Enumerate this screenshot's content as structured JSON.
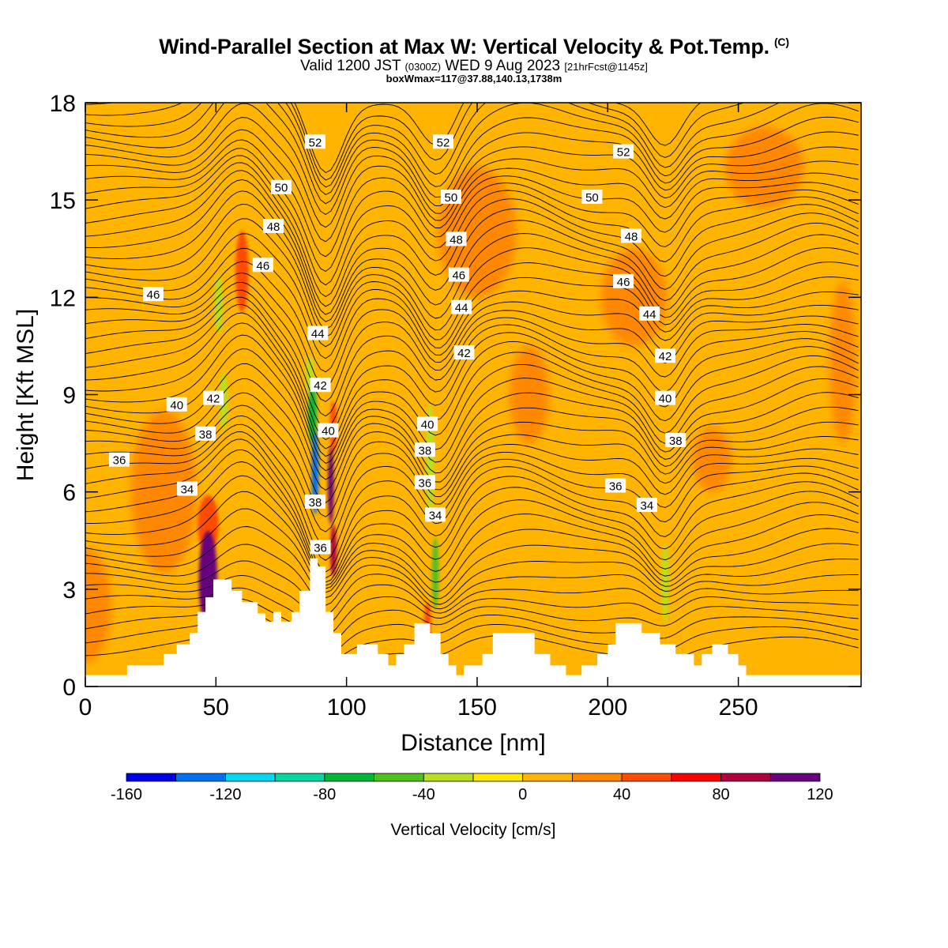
{
  "header": {
    "title": "Wind-Parallel Section at Max W: Vertical Velocity & Pot.Temp.",
    "copyright_mark": "(C)",
    "valid_prefix": "Valid 1200 JST",
    "valid_utc": "(0300Z)",
    "valid_date": "WED 9 Aug 2023",
    "forecast": "[21hrFcst@1145z]",
    "box_info": "boxWmax=117@37.88,140.13,1738m"
  },
  "chart_data": {
    "type": "heatmap",
    "xlabel": "Distance [nm]",
    "ylabel": "Height [Kft MSL]",
    "xlim": [
      0,
      297
    ],
    "ylim": [
      0,
      18
    ],
    "x_ticks": [
      0,
      50,
      100,
      150,
      200,
      250
    ],
    "x_tick_labels": [
      "0",
      "50",
      "100",
      "150",
      "200",
      "250"
    ],
    "y_ticks": [
      0,
      3,
      6,
      9,
      12,
      15,
      18
    ],
    "y_tick_labels": [
      "0",
      "3",
      "6",
      "9",
      "12",
      "15",
      "18"
    ],
    "colorbar": {
      "label": "Vertical Velocity [cm/s]",
      "boundaries": [
        -160,
        -140,
        -120,
        -100,
        -80,
        -60,
        -40,
        -20,
        0,
        20,
        40,
        60,
        80,
        100,
        120
      ],
      "colors": [
        "#0000e8",
        "#0070f0",
        "#00d8f4",
        "#00d8a0",
        "#00b838",
        "#50c020",
        "#b8e020",
        "#ffe800",
        "#ffb400",
        "#ff8400",
        "#ff4c00",
        "#ff0000",
        "#b00040",
        "#680080"
      ],
      "tick_values": [
        -160,
        -120,
        -80,
        -40,
        0,
        40,
        80,
        120
      ],
      "tick_labels": [
        "-160",
        "-120",
        "-80",
        "-40",
        "0",
        "40",
        "80",
        "120"
      ]
    },
    "terrain": [
      [
        0,
        0.35
      ],
      [
        16,
        0.35
      ],
      [
        16,
        0.65
      ],
      [
        30,
        0.65
      ],
      [
        30,
        1.0
      ],
      [
        35,
        1.0
      ],
      [
        35,
        1.3
      ],
      [
        40,
        1.3
      ],
      [
        40,
        1.65
      ],
      [
        43,
        1.65
      ],
      [
        43,
        2.3
      ],
      [
        46,
        2.3
      ],
      [
        46,
        2.75
      ],
      [
        49,
        2.75
      ],
      [
        49,
        3.3
      ],
      [
        56,
        3.3
      ],
      [
        56,
        2.95
      ],
      [
        60,
        2.95
      ],
      [
        60,
        2.6
      ],
      [
        66,
        2.6
      ],
      [
        66,
        2.25
      ],
      [
        69,
        2.25
      ],
      [
        69,
        2.0
      ],
      [
        72,
        2.0
      ],
      [
        72,
        2.3
      ],
      [
        75,
        2.3
      ],
      [
        75,
        2.0
      ],
      [
        79,
        2.0
      ],
      [
        79,
        2.3
      ],
      [
        82,
        2.3
      ],
      [
        82,
        2.95
      ],
      [
        86,
        2.95
      ],
      [
        86,
        3.95
      ],
      [
        89,
        3.95
      ],
      [
        89,
        3.7
      ],
      [
        92,
        3.7
      ],
      [
        92,
        2.3
      ],
      [
        95,
        2.3
      ],
      [
        95,
        1.65
      ],
      [
        98,
        1.65
      ],
      [
        98,
        1.0
      ],
      [
        104,
        1.0
      ],
      [
        104,
        1.3
      ],
      [
        112,
        1.3
      ],
      [
        112,
        1.0
      ],
      [
        116,
        1.0
      ],
      [
        116,
        0.65
      ],
      [
        119,
        0.65
      ],
      [
        119,
        1.0
      ],
      [
        122,
        1.0
      ],
      [
        122,
        1.3
      ],
      [
        126,
        1.3
      ],
      [
        126,
        1.95
      ],
      [
        132,
        1.95
      ],
      [
        132,
        1.65
      ],
      [
        136,
        1.65
      ],
      [
        136,
        1.0
      ],
      [
        139,
        1.0
      ],
      [
        139,
        0.65
      ],
      [
        142,
        0.65
      ],
      [
        142,
        0.35
      ],
      [
        145,
        0.35
      ],
      [
        145,
        0.65
      ],
      [
        152,
        0.65
      ],
      [
        152,
        1.0
      ],
      [
        156,
        1.0
      ],
      [
        156,
        1.65
      ],
      [
        172,
        1.65
      ],
      [
        172,
        1.0
      ],
      [
        178,
        1.0
      ],
      [
        178,
        0.65
      ],
      [
        184,
        0.65
      ],
      [
        184,
        0.35
      ],
      [
        190,
        0.35
      ],
      [
        190,
        0.65
      ],
      [
        196,
        0.65
      ],
      [
        196,
        1.0
      ],
      [
        200,
        1.0
      ],
      [
        200,
        1.3
      ],
      [
        203,
        1.3
      ],
      [
        203,
        1.95
      ],
      [
        213,
        1.95
      ],
      [
        213,
        1.65
      ],
      [
        220,
        1.65
      ],
      [
        220,
        1.3
      ],
      [
        226,
        1.3
      ],
      [
        226,
        1.0
      ],
      [
        233,
        1.0
      ],
      [
        233,
        0.65
      ],
      [
        236,
        0.65
      ],
      [
        236,
        1.0
      ],
      [
        240,
        1.0
      ],
      [
        240,
        1.3
      ],
      [
        246,
        1.3
      ],
      [
        246,
        1.0
      ],
      [
        250,
        1.0
      ],
      [
        250,
        0.65
      ],
      [
        253,
        0.65
      ],
      [
        253,
        0.35
      ],
      [
        297,
        0.35
      ]
    ],
    "velocity_features": [
      {
        "x": 47,
        "y": 3.3,
        "w": 120,
        "x_width": 7,
        "y_height": 3.0
      },
      {
        "x": 47,
        "y": 5.0,
        "w": 40,
        "x_width": 8,
        "y_height": 1.8
      },
      {
        "x": 60,
        "y": 12.8,
        "w": 40,
        "x_width": 5,
        "y_height": 2.5
      },
      {
        "x": 51,
        "y": 11.8,
        "w": -40,
        "x_width": 3,
        "y_height": 1.8
      },
      {
        "x": 53,
        "y": 8.8,
        "w": -40,
        "x_width": 3,
        "y_height": 1.8
      },
      {
        "x": 88,
        "y": 6.6,
        "w": -140,
        "x_width": 2.6,
        "y_height": 2.6
      },
      {
        "x": 87,
        "y": 8.4,
        "w": -80,
        "x_width": 3.2,
        "y_height": 1.8
      },
      {
        "x": 86,
        "y": 9.6,
        "w": -40,
        "x_width": 3,
        "y_height": 1.2
      },
      {
        "x": 94,
        "y": 6.2,
        "w": 120,
        "x_width": 2.2,
        "y_height": 2.4
      },
      {
        "x": 95,
        "y": 4.2,
        "w": 80,
        "x_width": 2.4,
        "y_height": 1.6
      },
      {
        "x": 95,
        "y": 8.0,
        "w": 40,
        "x_width": 2.8,
        "y_height": 1.6
      },
      {
        "x": 134,
        "y": 3.5,
        "w": -60,
        "x_width": 2.5,
        "y_height": 2.2
      },
      {
        "x": 132,
        "y": 7.0,
        "w": -40,
        "x_width": 3,
        "y_height": 3.5
      },
      {
        "x": 131,
        "y": 2.0,
        "w": 40,
        "x_width": 2.5,
        "y_height": 1.2
      },
      {
        "x": 222,
        "y": 3.2,
        "w": -40,
        "x_width": 2.5,
        "y_height": 2.5
      },
      {
        "x": 210,
        "y": 12,
        "w": 20,
        "x_width": 25,
        "y_height": 3
      },
      {
        "x": 150,
        "y": 14,
        "w": 20,
        "x_width": 30,
        "y_height": 4
      },
      {
        "x": 30,
        "y": 6,
        "w": 20,
        "x_width": 25,
        "y_height": 5
      },
      {
        "x": 260,
        "y": 16,
        "w": 20,
        "x_width": 30,
        "y_height": 2.5
      },
      {
        "x": 0,
        "y": 2.5,
        "w": 20,
        "x_width": 20,
        "y_height": 3.5
      },
      {
        "x": 290,
        "y": 10,
        "w": 20,
        "x_width": 10,
        "y_height": 5
      },
      {
        "x": 170,
        "y": 9,
        "w": 20,
        "x_width": 15,
        "y_height": 3
      },
      {
        "x": 240,
        "y": 7,
        "w": 20,
        "x_width": 15,
        "y_height": 2
      }
    ],
    "theta_contour_labels": [
      {
        "value": "52",
        "x": 88,
        "y": 16.8
      },
      {
        "value": "52",
        "x": 137,
        "y": 16.8
      },
      {
        "value": "52",
        "x": 206,
        "y": 16.5
      },
      {
        "value": "50",
        "x": 75,
        "y": 15.4
      },
      {
        "value": "50",
        "x": 140,
        "y": 15.1
      },
      {
        "value": "50",
        "x": 194,
        "y": 15.1
      },
      {
        "value": "48",
        "x": 72,
        "y": 14.2
      },
      {
        "value": "48",
        "x": 142,
        "y": 13.8
      },
      {
        "value": "48",
        "x": 209,
        "y": 13.9
      },
      {
        "value": "46",
        "x": 68,
        "y": 13.0
      },
      {
        "value": "46",
        "x": 143,
        "y": 12.7
      },
      {
        "value": "46",
        "x": 206,
        "y": 12.5
      },
      {
        "value": "46",
        "x": 26,
        "y": 12.1
      },
      {
        "value": "44",
        "x": 89,
        "y": 10.9
      },
      {
        "value": "44",
        "x": 144,
        "y": 11.7
      },
      {
        "value": "44",
        "x": 216,
        "y": 11.5
      },
      {
        "value": "42",
        "x": 90,
        "y": 9.3
      },
      {
        "value": "42",
        "x": 145,
        "y": 10.3
      },
      {
        "value": "42",
        "x": 222,
        "y": 10.2
      },
      {
        "value": "42",
        "x": 49,
        "y": 8.9
      },
      {
        "value": "40",
        "x": 35,
        "y": 8.7
      },
      {
        "value": "40",
        "x": 93,
        "y": 7.9
      },
      {
        "value": "40",
        "x": 131,
        "y": 8.1
      },
      {
        "value": "40",
        "x": 222,
        "y": 8.9
      },
      {
        "value": "38",
        "x": 46,
        "y": 7.8
      },
      {
        "value": "38",
        "x": 130,
        "y": 7.3
      },
      {
        "value": "38",
        "x": 226,
        "y": 7.6
      },
      {
        "value": "38",
        "x": 88,
        "y": 5.7
      },
      {
        "value": "36",
        "x": 13,
        "y": 7.0
      },
      {
        "value": "36",
        "x": 130,
        "y": 6.3
      },
      {
        "value": "36",
        "x": 203,
        "y": 6.2
      },
      {
        "value": "36",
        "x": 90,
        "y": 4.3
      },
      {
        "value": "34",
        "x": 39,
        "y": 6.1
      },
      {
        "value": "34",
        "x": 134,
        "y": 5.3
      },
      {
        "value": "34",
        "x": 215,
        "y": 5.6
      }
    ]
  }
}
